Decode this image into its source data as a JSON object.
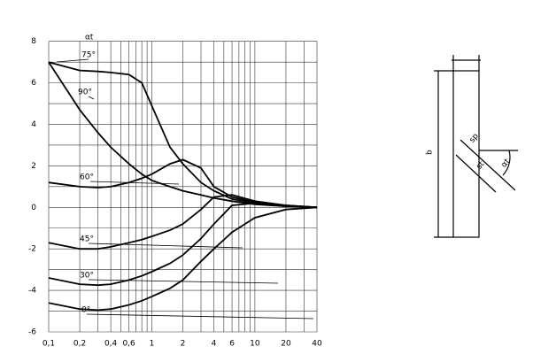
{
  "chart_data": {
    "type": "line",
    "log_x": true,
    "grid": true,
    "color": "#000000",
    "annotation": "αt",
    "x": [
      0.1,
      0.2,
      0.3,
      0.4,
      0.6,
      0.8,
      1,
      1.5,
      2,
      3,
      4,
      6,
      10,
      20,
      40
    ],
    "series": [
      {
        "name": "75°",
        "color": "#000000",
        "values": [
          7,
          6.6,
          6.55,
          6.5,
          6.4,
          6.0,
          4.9,
          2.9,
          2.1,
          1.2,
          0.8,
          0.4,
          0.2,
          0.05,
          0
        ]
      },
      {
        "name": "90°",
        "color": "#000000",
        "values": [
          7,
          4.7,
          3.6,
          2.9,
          2.1,
          1.6,
          1.3,
          1.0,
          0.8,
          0.6,
          0.45,
          0.3,
          0.15,
          0.05,
          0
        ]
      },
      {
        "name": "60°",
        "color": "#000000",
        "values": [
          1.2,
          1.0,
          0.95,
          1.0,
          1.2,
          1.4,
          1.6,
          2.1,
          2.3,
          1.9,
          1.0,
          0.5,
          0.25,
          0.08,
          0
        ]
      },
      {
        "name": "45°",
        "color": "#000000",
        "values": [
          -1.7,
          -2.0,
          -2.0,
          -1.9,
          -1.7,
          -1.55,
          -1.4,
          -1.1,
          -0.8,
          -0.1,
          0.5,
          0.6,
          0.3,
          0.1,
          0
        ]
      },
      {
        "name": "30°",
        "color": "#000000",
        "values": [
          -3.4,
          -3.7,
          -3.75,
          -3.7,
          -3.5,
          -3.3,
          -3.1,
          -2.7,
          -2.3,
          -1.5,
          -0.8,
          0.1,
          0.2,
          0.1,
          0
        ]
      },
      {
        "name": "0°",
        "color": "#000000",
        "values": [
          -4.6,
          -4.9,
          -4.95,
          -4.9,
          -4.7,
          -4.5,
          -4.3,
          -3.9,
          -3.5,
          -2.6,
          -2.0,
          -1.2,
          -0.5,
          -0.1,
          0
        ]
      }
    ],
    "xlim": [
      0.1,
      40
    ],
    "ylim": [
      -6,
      8.5
    ],
    "xticks": [
      {
        "value": 0.1,
        "label": "0,1"
      },
      {
        "value": 0.2,
        "label": "0,2"
      },
      {
        "value": 0.4,
        "label": "0,4"
      },
      {
        "value": 0.6,
        "label": "0,6"
      },
      1,
      2,
      4,
      6,
      10,
      20,
      40
    ],
    "xminor": [
      0.3,
      0.5,
      0.7,
      0.8,
      0.9,
      3,
      5,
      7,
      8,
      9,
      30
    ],
    "yticks": [
      -6,
      -4,
      -2,
      0,
      2,
      4,
      6,
      8
    ],
    "yminor": [
      -5,
      -3,
      -1,
      1,
      3,
      5,
      7
    ]
  },
  "diagram": {
    "b": "b",
    "sp": "sp",
    "st": "st",
    "alpha": "αt"
  }
}
